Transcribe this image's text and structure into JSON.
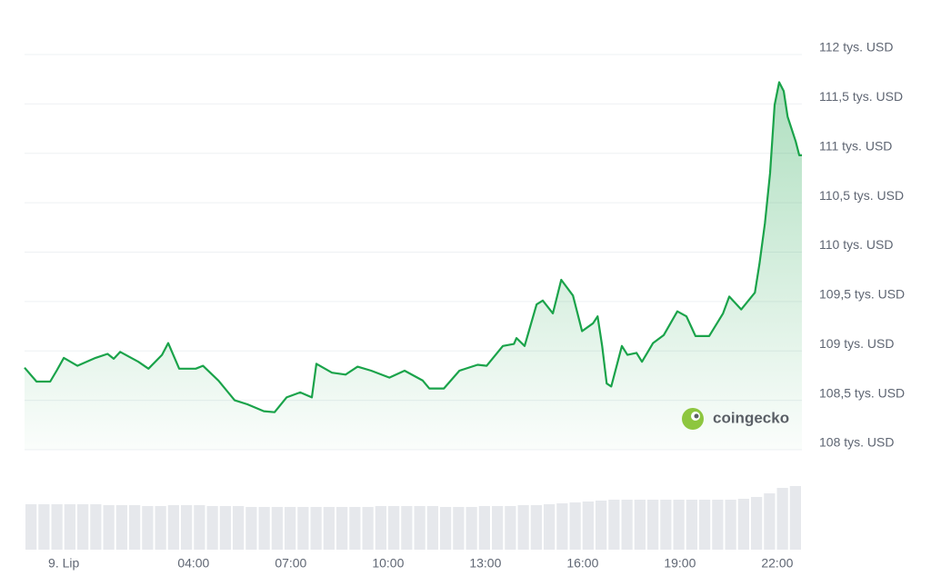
{
  "chart_data": {
    "type": "line",
    "x": [
      -1.21,
      -0.84,
      -0.42,
      -0.22,
      0,
      0.42,
      0.98,
      1.35,
      1.54,
      1.74,
      2.3,
      2.61,
      3.03,
      3.22,
      3.56,
      4.07,
      4.29,
      4.77,
      5.27,
      5.66,
      6.17,
      6.5,
      6.87,
      7.29,
      7.65,
      7.79,
      8.27,
      8.69,
      9.06,
      9.48,
      10.04,
      10.51,
      11.07,
      11.27,
      11.72,
      12.2,
      12.76,
      13.04,
      13.54,
      13.88,
      13.96,
      14.21,
      14.58,
      14.77,
      15.08,
      15.34,
      15.7,
      15.98,
      16.32,
      16.46,
      16.6,
      16.74,
      16.88,
      17.21,
      17.38,
      17.66,
      17.83,
      18.17,
      18.5,
      18.92,
      19.2,
      19.48,
      19.9,
      20.33,
      20.52,
      20.89,
      21.31,
      21.45,
      21.62,
      21.78,
      21.92,
      22.06,
      22.2,
      22.32,
      22.57,
      22.68,
      22.76
    ],
    "values": [
      108.83,
      108.69,
      108.69,
      108.8,
      108.93,
      108.85,
      108.93,
      108.97,
      108.92,
      108.99,
      108.89,
      108.82,
      108.96,
      109.08,
      108.82,
      108.82,
      108.85,
      108.7,
      108.5,
      108.46,
      108.39,
      108.38,
      108.53,
      108.58,
      108.53,
      108.87,
      108.78,
      108.76,
      108.84,
      108.8,
      108.73,
      108.8,
      108.7,
      108.62,
      108.62,
      108.8,
      108.86,
      108.85,
      109.05,
      109.07,
      109.13,
      109.05,
      109.47,
      109.51,
      109.38,
      109.72,
      109.56,
      109.2,
      109.28,
      109.35,
      109.05,
      108.67,
      108.64,
      109.05,
      108.96,
      108.98,
      108.89,
      109.08,
      109.16,
      109.4,
      109.35,
      109.15,
      109.15,
      109.38,
      109.55,
      109.42,
      109.59,
      109.88,
      110.29,
      110.8,
      111.49,
      111.72,
      111.63,
      111.37,
      111.12,
      110.98,
      110.98
    ],
    "color": "#1aa34a",
    "xlim": [
      -1.21,
      22.76
    ],
    "xticks": [
      {
        "value": 0,
        "label": "9. Lip"
      },
      {
        "value": 4,
        "label": "04:00"
      },
      {
        "value": 7,
        "label": "07:00"
      },
      {
        "value": 10,
        "label": "10:00"
      },
      {
        "value": 13,
        "label": "13:00"
      },
      {
        "value": 16,
        "label": "16:00"
      },
      {
        "value": 19,
        "label": "19:00"
      },
      {
        "value": 22,
        "label": "22:00"
      }
    ],
    "ylim": [
      108,
      112
    ],
    "yticks": [
      {
        "value": 112,
        "label": "112 tys. USD"
      },
      {
        "value": 111.5,
        "label": "111,5 tys. USD"
      },
      {
        "value": 111,
        "label": "111 tys. USD"
      },
      {
        "value": 110.5,
        "label": "110,5 tys. USD"
      },
      {
        "value": 110,
        "label": "110 tys. USD"
      },
      {
        "value": 109.5,
        "label": "109,5 tys. USD"
      },
      {
        "value": 109,
        "label": "109 tys. USD"
      },
      {
        "value": 108.5,
        "label": "108,5 tys. USD"
      },
      {
        "value": 108,
        "label": "108 tys. USD"
      }
    ],
    "grid": true,
    "volume": {
      "color": "#e6e8ec",
      "ylim": [
        0,
        80
      ],
      "values": [
        50,
        50,
        50,
        50,
        50,
        50,
        49,
        49,
        49,
        48,
        48,
        49,
        49,
        49,
        48,
        48,
        48,
        47,
        47,
        47,
        47,
        47,
        47,
        47,
        47,
        47,
        47,
        48,
        48,
        48,
        48,
        48,
        47,
        47,
        47,
        48,
        48,
        48,
        49,
        49,
        50,
        51,
        52,
        53,
        54,
        55,
        55,
        55,
        55,
        55,
        55,
        55,
        55,
        55,
        55,
        56,
        58,
        62,
        68,
        70
      ]
    },
    "watermark": "coingecko"
  }
}
